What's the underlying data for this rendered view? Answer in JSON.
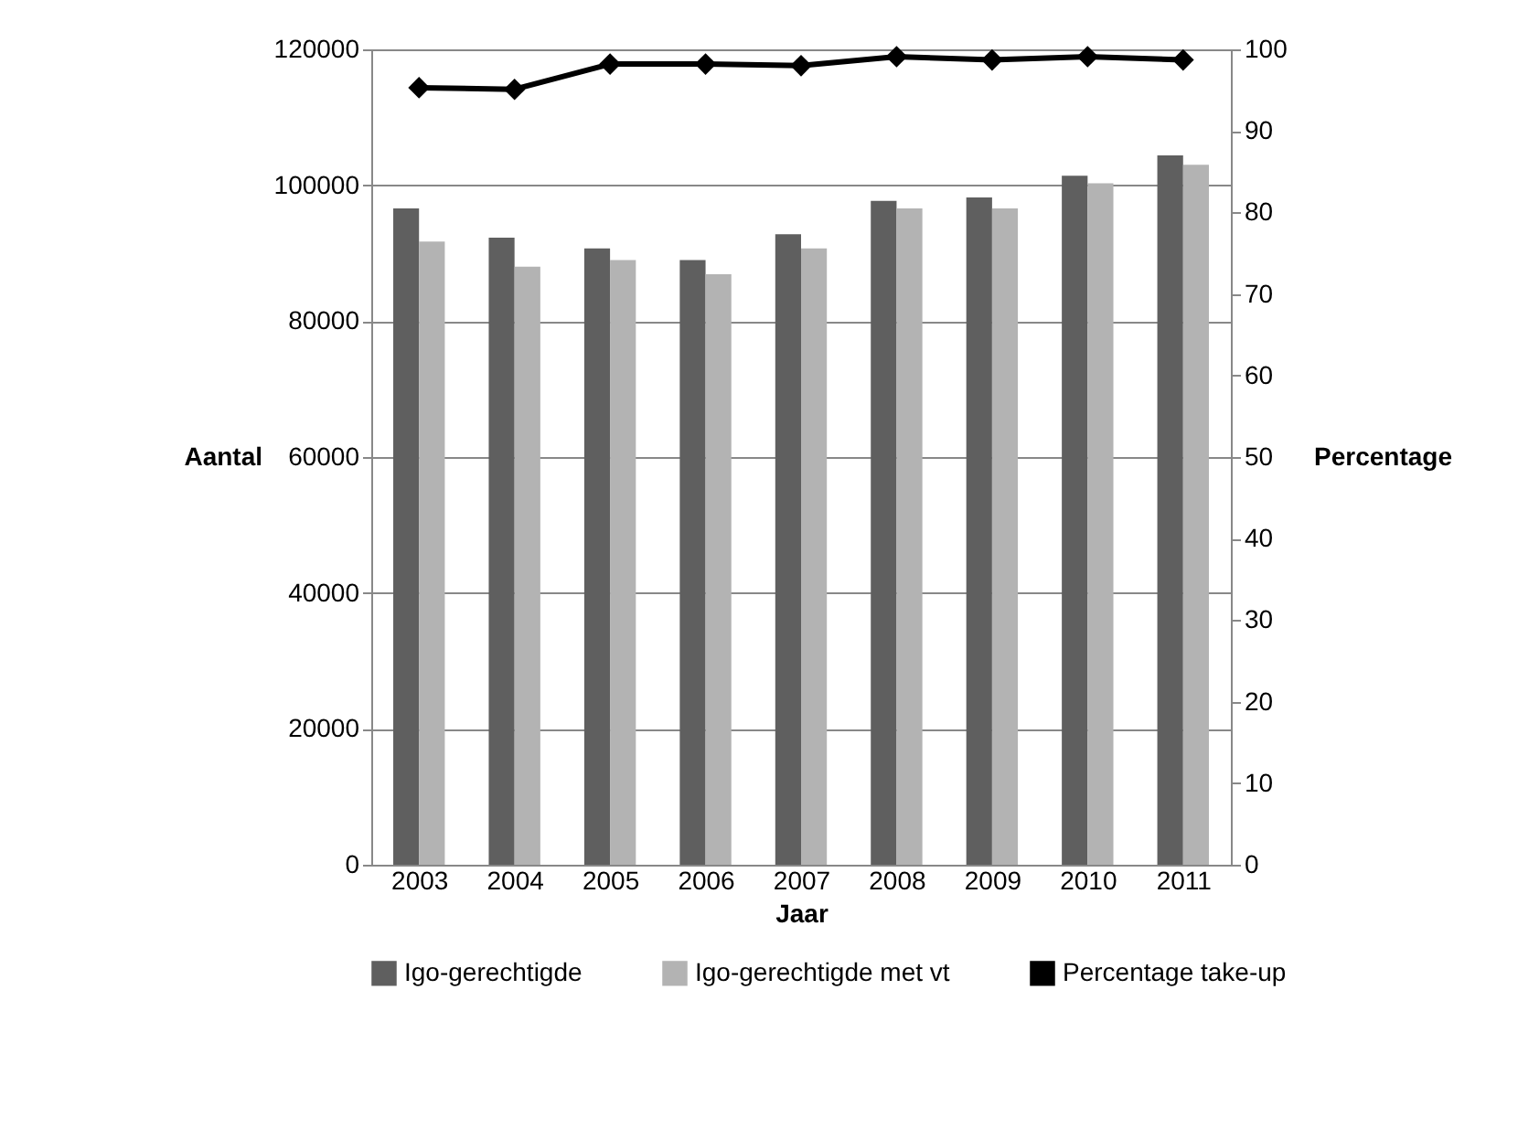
{
  "chart_data": {
    "type": "bar",
    "xlabel": "Jaar",
    "ylabel": "Aantal",
    "y2label": "Percentage",
    "categories": [
      "2003",
      "2004",
      "2005",
      "2006",
      "2007",
      "2008",
      "2009",
      "2010",
      "2011"
    ],
    "series": [
      {
        "name": "Igo-gerechtigde",
        "color": "#5f5f5f",
        "values": [
          96600,
          92300,
          90700,
          89000,
          92800,
          97700,
          98200,
          101400,
          104400
        ]
      },
      {
        "name": "Igo-gerechtigde met vt",
        "color": "#b3b3b3",
        "values": [
          91700,
          88000,
          89000,
          86900,
          90700,
          96600,
          96600,
          100300,
          103000
        ]
      },
      {
        "name": "Percentage take-up",
        "type": "line",
        "axis": "y2",
        "color": "#000000",
        "marker": "diamond",
        "values": [
          95.3,
          95.1,
          98.2,
          98.2,
          98.0,
          99.1,
          98.7,
          99.1,
          98.7
        ]
      }
    ],
    "ylim": [
      0,
      120000
    ],
    "yticks": [
      0,
      20000,
      40000,
      60000,
      80000,
      100000,
      120000
    ],
    "y2lim": [
      0,
      100
    ],
    "y2ticks": [
      0,
      10,
      20,
      30,
      40,
      50,
      60,
      70,
      80,
      90,
      100
    ],
    "grid": "y",
    "legend": "bottom"
  }
}
